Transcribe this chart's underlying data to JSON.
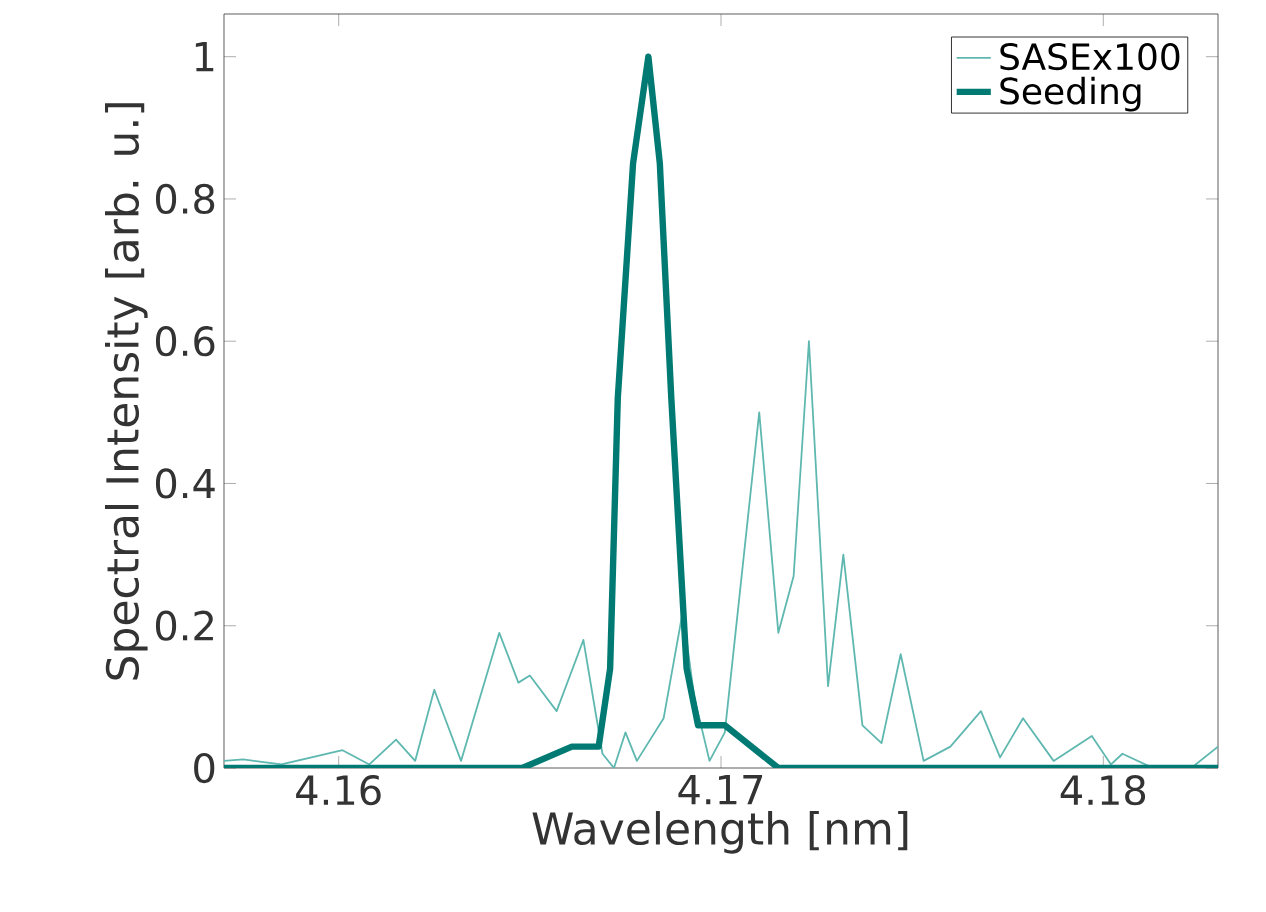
{
  "chart_data": {
    "type": "line",
    "xlabel": "Wavelength [nm]",
    "ylabel": "Spectral Intensity [arb. u.]",
    "xlim": [
      4.157,
      4.183
    ],
    "ylim": [
      0,
      1.06
    ],
    "xticks": [
      4.16,
      4.17,
      4.18
    ],
    "yticks": [
      0,
      0.2,
      0.4,
      0.6,
      0.8,
      1
    ],
    "legend": "top right",
    "grid": false,
    "marker": "none",
    "line_style": "solid",
    "series": [
      {
        "name": "SASEx100",
        "color": "#5fb8b0",
        "x": [
          4.157,
          4.1575,
          4.1585,
          4.1601,
          4.1608,
          4.1615,
          4.162,
          4.1625,
          4.1632,
          4.1642,
          4.1647,
          4.165,
          4.1657,
          4.1664,
          4.1669,
          4.1672,
          4.1675,
          4.1678,
          4.1685,
          4.169,
          4.1693,
          4.1697,
          4.1701,
          4.171,
          4.1715,
          4.1719,
          4.1723,
          4.1728,
          4.1732,
          4.1737,
          4.1742,
          4.1747,
          4.1753,
          4.176,
          4.1768,
          4.1773,
          4.1779,
          4.1787,
          4.1797,
          4.1802,
          4.1805,
          4.1813,
          4.1823,
          4.183
        ],
        "values": [
          0.01,
          0.012,
          0.005,
          0.025,
          0.005,
          0.04,
          0.01,
          0.11,
          0.01,
          0.19,
          0.12,
          0.13,
          0.08,
          0.18,
          0.02,
          0.0,
          0.05,
          0.01,
          0.07,
          0.22,
          0.1,
          0.01,
          0.05,
          0.5,
          0.19,
          0.27,
          0.6,
          0.115,
          0.3,
          0.06,
          0.035,
          0.16,
          0.01,
          0.03,
          0.08,
          0.015,
          0.07,
          0.01,
          0.045,
          0.005,
          0.02,
          0.0,
          0.0,
          0.03
        ]
      },
      {
        "name": "Seeding",
        "color": "#007a73",
        "x": [
          4.157,
          4.1648,
          4.1661,
          4.1668,
          4.1671,
          4.1673,
          4.1677,
          4.1681,
          4.1684,
          4.1687,
          4.1691,
          4.1694,
          4.1701,
          4.1715,
          4.183
        ],
        "values": [
          0.0,
          0.0,
          0.03,
          0.03,
          0.14,
          0.52,
          0.85,
          1.0,
          0.85,
          0.52,
          0.14,
          0.06,
          0.06,
          0.0,
          0.0
        ]
      }
    ]
  }
}
